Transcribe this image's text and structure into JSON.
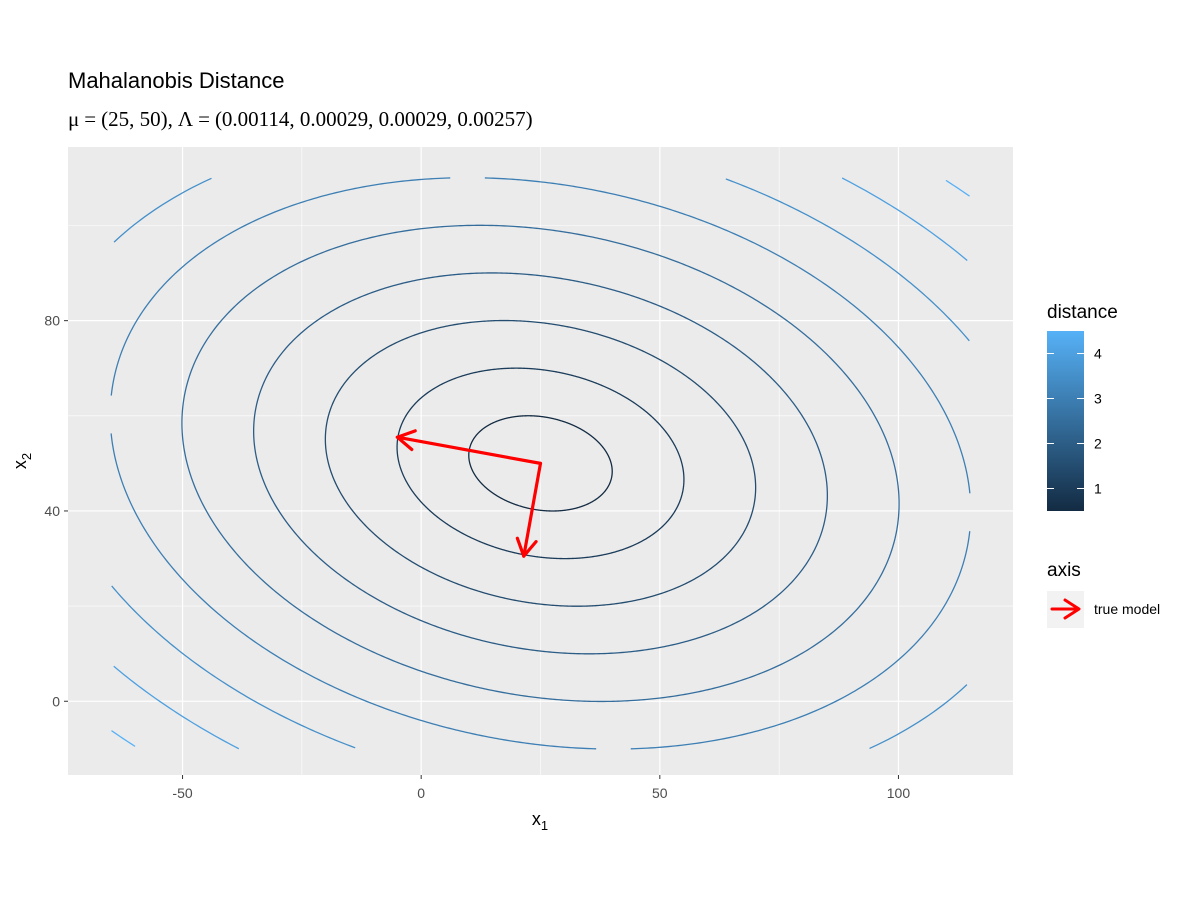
{
  "chart_data": {
    "type": "contour",
    "title": "Mahalanobis Distance",
    "subtitle": "μ = (25, 50), Λ = (0.00114, 0.00029, 0.00029, 0.00257)",
    "subtitle_parts": {
      "mu_symbol": "μ",
      "mu_value": "(25, 50),",
      "lambda_symbol": "Λ",
      "lambda_value": "(0.00114, 0.00029, 0.00029, 0.00257)",
      "equals": "="
    },
    "xlabel": "x",
    "xlabel_sub": "1",
    "ylabel": "x",
    "ylabel_sub": "2",
    "xlim": [
      -74,
      124
    ],
    "ylim": [
      -15.5,
      116.5
    ],
    "data_range": {
      "x": [
        -65,
        115
      ],
      "y": [
        -10,
        110
      ]
    },
    "x_ticks": [
      -50,
      0,
      50,
      100
    ],
    "y_ticks": [
      0,
      40,
      80
    ],
    "grid": true,
    "mean": [
      25,
      50
    ],
    "precision": [
      [
        0.00114,
        0.00029
      ],
      [
        0.00029,
        0.00257
      ]
    ],
    "contour_levels": [
      0.5,
      1.0,
      1.5,
      2.0,
      2.5,
      3.0,
      3.5,
      4.0,
      4.5
    ],
    "color_scale": {
      "low": "#132B43",
      "high": "#56B1F7",
      "min": 0.5,
      "max": 4.5
    },
    "axis_arrows": [
      {
        "from": [
          25,
          50
        ],
        "to": [
          -5,
          55.5
        ]
      },
      {
        "from": [
          25,
          50
        ],
        "to": [
          21.5,
          30.5
        ]
      }
    ],
    "arrow_color": "#FF0000",
    "legend": {
      "distance_title": "distance",
      "distance_ticks": [
        1,
        2,
        3,
        4
      ],
      "axis_title": "axis",
      "axis_entry": "true model"
    }
  }
}
